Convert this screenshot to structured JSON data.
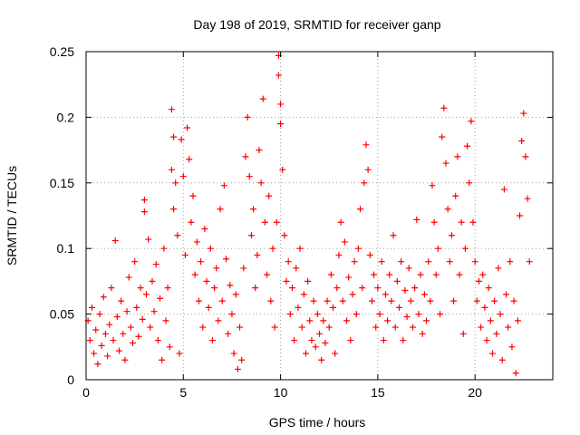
{
  "chart_data": {
    "type": "scatter",
    "title": "Day 198 of 2019, SRMTID for receiver ganp",
    "xlabel": "GPS time / hours",
    "ylabel": "SRMTID / TECUs",
    "xlim": [
      0,
      24
    ],
    "ylim": [
      0,
      0.25
    ],
    "x_ticks": [
      0,
      5,
      10,
      15,
      20
    ],
    "x_tick_labels": [
      "0",
      "5",
      "10",
      "15",
      "20"
    ],
    "y_ticks": [
      0,
      0.05,
      0.1,
      0.15,
      0.2,
      0.25
    ],
    "y_tick_labels": [
      "0",
      "0.05",
      "0.1",
      "0.15",
      "0.2",
      "0.25"
    ],
    "grid": true,
    "marker": "+",
    "color": "#ff0000",
    "series": [
      {
        "name": "SRMTID",
        "points": [
          [
            0.1,
            0.045
          ],
          [
            0.2,
            0.03
          ],
          [
            0.3,
            0.055
          ],
          [
            0.4,
            0.02
          ],
          [
            0.5,
            0.038
          ],
          [
            0.6,
            0.012
          ],
          [
            0.7,
            0.05
          ],
          [
            0.8,
            0.026
          ],
          [
            0.9,
            0.063
          ],
          [
            1.0,
            0.035
          ],
          [
            1.1,
            0.018
          ],
          [
            1.2,
            0.042
          ],
          [
            1.3,
            0.07
          ],
          [
            1.4,
            0.03
          ],
          [
            1.5,
            0.106
          ],
          [
            1.6,
            0.048
          ],
          [
            1.7,
            0.022
          ],
          [
            1.8,
            0.06
          ],
          [
            1.9,
            0.035
          ],
          [
            2.0,
            0.015
          ],
          [
            2.1,
            0.052
          ],
          [
            2.2,
            0.078
          ],
          [
            2.3,
            0.04
          ],
          [
            2.4,
            0.028
          ],
          [
            2.5,
            0.09
          ],
          [
            2.6,
            0.055
          ],
          [
            2.7,
            0.033
          ],
          [
            2.8,
            0.07
          ],
          [
            2.9,
            0.046
          ],
          [
            3.0,
            0.137
          ],
          [
            3.0,
            0.128
          ],
          [
            3.1,
            0.065
          ],
          [
            3.2,
            0.107
          ],
          [
            3.3,
            0.04
          ],
          [
            3.4,
            0.075
          ],
          [
            3.5,
            0.052
          ],
          [
            3.6,
            0.088
          ],
          [
            3.7,
            0.03
          ],
          [
            3.8,
            0.062
          ],
          [
            3.9,
            0.015
          ],
          [
            4.0,
            0.1
          ],
          [
            4.1,
            0.045
          ],
          [
            4.2,
            0.07
          ],
          [
            4.3,
            0.025
          ],
          [
            4.4,
            0.206
          ],
          [
            4.4,
            0.16
          ],
          [
            4.5,
            0.185
          ],
          [
            4.5,
            0.13
          ],
          [
            4.6,
            0.15
          ],
          [
            4.7,
            0.11
          ],
          [
            4.8,
            0.02
          ],
          [
            4.9,
            0.183
          ],
          [
            5.0,
            0.155
          ],
          [
            5.1,
            0.095
          ],
          [
            5.2,
            0.192
          ],
          [
            5.3,
            0.168
          ],
          [
            5.4,
            0.12
          ],
          [
            5.5,
            0.14
          ],
          [
            5.6,
            0.08
          ],
          [
            5.7,
            0.105
          ],
          [
            5.8,
            0.06
          ],
          [
            5.9,
            0.09
          ],
          [
            6.0,
            0.04
          ],
          [
            6.1,
            0.115
          ],
          [
            6.2,
            0.075
          ],
          [
            6.3,
            0.055
          ],
          [
            6.4,
            0.1
          ],
          [
            6.5,
            0.03
          ],
          [
            6.6,
            0.07
          ],
          [
            6.7,
            0.085
          ],
          [
            6.8,
            0.045
          ],
          [
            6.9,
            0.13
          ],
          [
            7.0,
            0.06
          ],
          [
            7.1,
            0.148
          ],
          [
            7.2,
            0.092
          ],
          [
            7.3,
            0.035
          ],
          [
            7.4,
            0.072
          ],
          [
            7.5,
            0.05
          ],
          [
            7.6,
            0.02
          ],
          [
            7.7,
            0.065
          ],
          [
            7.8,
            0.008
          ],
          [
            7.9,
            0.04
          ],
          [
            8.0,
            0.015
          ],
          [
            8.1,
            0.085
          ],
          [
            8.2,
            0.17
          ],
          [
            8.3,
            0.2
          ],
          [
            8.4,
            0.155
          ],
          [
            8.5,
            0.11
          ],
          [
            8.6,
            0.13
          ],
          [
            8.7,
            0.07
          ],
          [
            8.8,
            0.095
          ],
          [
            8.9,
            0.175
          ],
          [
            9.0,
            0.15
          ],
          [
            9.1,
            0.214
          ],
          [
            9.2,
            0.12
          ],
          [
            9.3,
            0.08
          ],
          [
            9.4,
            0.14
          ],
          [
            9.5,
            0.06
          ],
          [
            9.6,
            0.1
          ],
          [
            9.7,
            0.04
          ],
          [
            9.8,
            0.12
          ],
          [
            9.9,
            0.247
          ],
          [
            9.9,
            0.232
          ],
          [
            10.0,
            0.21
          ],
          [
            10.0,
            0.195
          ],
          [
            10.1,
            0.16
          ],
          [
            10.2,
            0.11
          ],
          [
            10.3,
            0.075
          ],
          [
            10.4,
            0.09
          ],
          [
            10.5,
            0.05
          ],
          [
            10.6,
            0.07
          ],
          [
            10.7,
            0.03
          ],
          [
            10.8,
            0.085
          ],
          [
            10.9,
            0.055
          ],
          [
            11.0,
            0.1
          ],
          [
            11.1,
            0.04
          ],
          [
            11.2,
            0.065
          ],
          [
            11.3,
            0.02
          ],
          [
            11.4,
            0.075
          ],
          [
            11.5,
            0.045
          ],
          [
            11.6,
            0.03
          ],
          [
            11.7,
            0.06
          ],
          [
            11.8,
            0.025
          ],
          [
            11.9,
            0.05
          ],
          [
            12.0,
            0.035
          ],
          [
            12.1,
            0.015
          ],
          [
            12.2,
            0.045
          ],
          [
            12.3,
            0.028
          ],
          [
            12.4,
            0.06
          ],
          [
            12.5,
            0.04
          ],
          [
            12.6,
            0.08
          ],
          [
            12.7,
            0.055
          ],
          [
            12.8,
            0.02
          ],
          [
            12.9,
            0.07
          ],
          [
            13.0,
            0.095
          ],
          [
            13.1,
            0.12
          ],
          [
            13.2,
            0.06
          ],
          [
            13.3,
            0.105
          ],
          [
            13.4,
            0.045
          ],
          [
            13.5,
            0.078
          ],
          [
            13.6,
            0.03
          ],
          [
            13.7,
            0.065
          ],
          [
            13.8,
            0.09
          ],
          [
            13.9,
            0.05
          ],
          [
            14.0,
            0.1
          ],
          [
            14.1,
            0.13
          ],
          [
            14.2,
            0.07
          ],
          [
            14.3,
            0.15
          ],
          [
            14.4,
            0.179
          ],
          [
            14.5,
            0.16
          ],
          [
            14.6,
            0.095
          ],
          [
            14.7,
            0.06
          ],
          [
            14.8,
            0.08
          ],
          [
            14.9,
            0.04
          ],
          [
            15.0,
            0.07
          ],
          [
            15.1,
            0.05
          ],
          [
            15.2,
            0.09
          ],
          [
            15.3,
            0.03
          ],
          [
            15.4,
            0.065
          ],
          [
            15.5,
            0.045
          ],
          [
            15.6,
            0.08
          ],
          [
            15.7,
            0.06
          ],
          [
            15.8,
            0.11
          ],
          [
            15.9,
            0.04
          ],
          [
            16.0,
            0.075
          ],
          [
            16.1,
            0.055
          ],
          [
            16.2,
            0.09
          ],
          [
            16.3,
            0.03
          ],
          [
            16.4,
            0.068
          ],
          [
            16.5,
            0.048
          ],
          [
            16.6,
            0.085
          ],
          [
            16.7,
            0.06
          ],
          [
            16.8,
            0.04
          ],
          [
            16.9,
            0.07
          ],
          [
            17.0,
            0.122
          ],
          [
            17.1,
            0.05
          ],
          [
            17.2,
            0.08
          ],
          [
            17.3,
            0.035
          ],
          [
            17.4,
            0.065
          ],
          [
            17.5,
            0.045
          ],
          [
            17.6,
            0.09
          ],
          [
            17.7,
            0.06
          ],
          [
            17.8,
            0.148
          ],
          [
            17.9,
            0.12
          ],
          [
            18.0,
            0.08
          ],
          [
            18.1,
            0.1
          ],
          [
            18.2,
            0.05
          ],
          [
            18.3,
            0.185
          ],
          [
            18.4,
            0.207
          ],
          [
            18.5,
            0.165
          ],
          [
            18.6,
            0.13
          ],
          [
            18.7,
            0.09
          ],
          [
            18.8,
            0.11
          ],
          [
            18.9,
            0.06
          ],
          [
            19.0,
            0.14
          ],
          [
            19.1,
            0.17
          ],
          [
            19.2,
            0.08
          ],
          [
            19.3,
            0.12
          ],
          [
            19.4,
            0.035
          ],
          [
            19.5,
            0.1
          ],
          [
            19.6,
            0.178
          ],
          [
            19.7,
            0.15
          ],
          [
            19.8,
            0.197
          ],
          [
            19.9,
            0.12
          ],
          [
            20.0,
            0.09
          ],
          [
            20.1,
            0.06
          ],
          [
            20.2,
            0.075
          ],
          [
            20.3,
            0.04
          ],
          [
            20.4,
            0.08
          ],
          [
            20.5,
            0.055
          ],
          [
            20.6,
            0.03
          ],
          [
            20.7,
            0.07
          ],
          [
            20.8,
            0.045
          ],
          [
            20.9,
            0.02
          ],
          [
            21.0,
            0.06
          ],
          [
            21.1,
            0.035
          ],
          [
            21.2,
            0.085
          ],
          [
            21.3,
            0.05
          ],
          [
            21.4,
            0.015
          ],
          [
            21.5,
            0.145
          ],
          [
            21.6,
            0.065
          ],
          [
            21.7,
            0.04
          ],
          [
            21.8,
            0.09
          ],
          [
            21.9,
            0.025
          ],
          [
            22.0,
            0.06
          ],
          [
            22.1,
            0.005
          ],
          [
            22.2,
            0.045
          ],
          [
            22.3,
            0.125
          ],
          [
            22.4,
            0.182
          ],
          [
            22.5,
            0.203
          ],
          [
            22.6,
            0.17
          ],
          [
            22.7,
            0.138
          ],
          [
            22.8,
            0.09
          ]
        ]
      }
    ]
  }
}
